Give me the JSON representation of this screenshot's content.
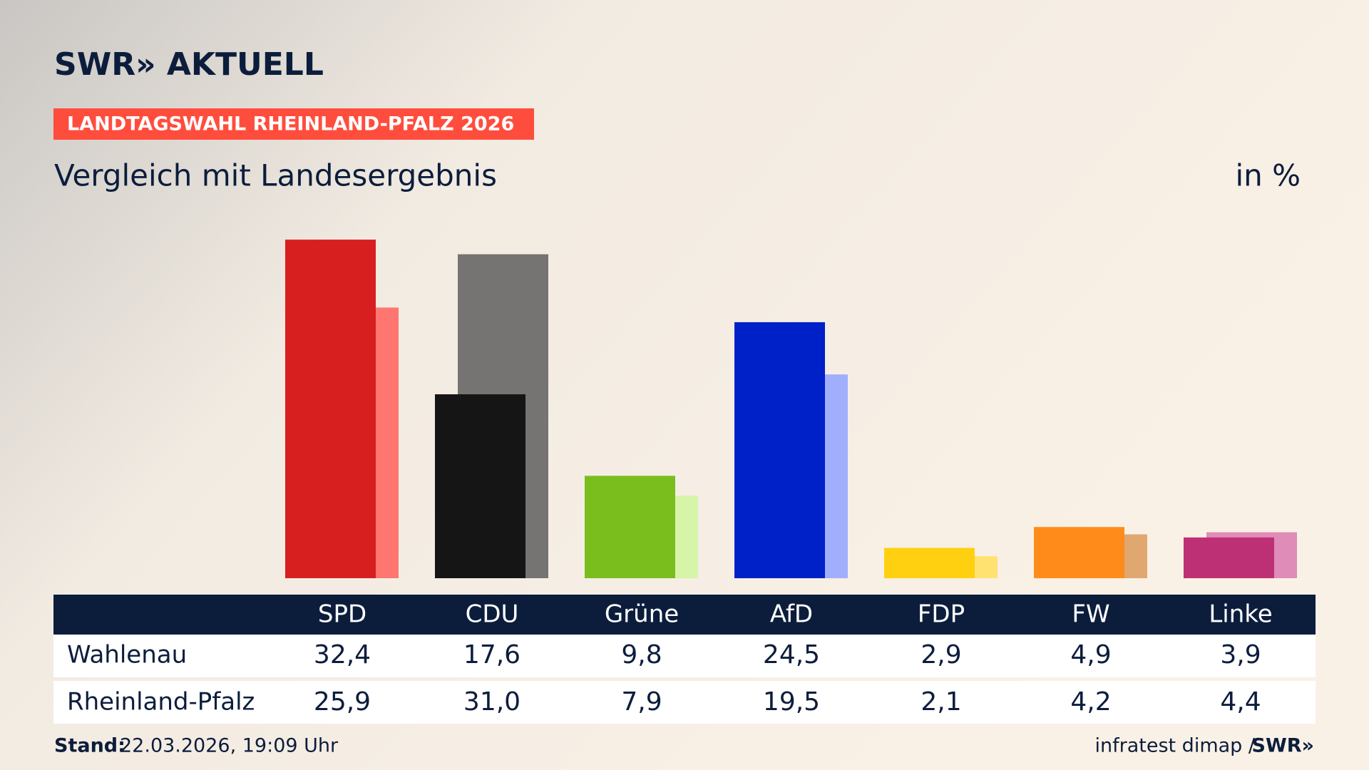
{
  "header": {
    "logo": "SWR» AKTUELL",
    "badge": "LANDTAGSWAHL RHEINLAND-PFALZ 2026"
  },
  "chart_data": {
    "type": "bar",
    "title": "Vergleich mit Landesergebnis",
    "unit": "in %",
    "categories": [
      "SPD",
      "CDU",
      "Grüne",
      "AfD",
      "FDP",
      "FW",
      "Linke"
    ],
    "series": [
      {
        "name": "Wahlenau",
        "colors": [
          "#d81f1f",
          "#151515",
          "#7abe1e",
          "#0020c8",
          "#ffd010",
          "#ff8c1a",
          "#be3075"
        ],
        "values": [
          32.4,
          17.6,
          9.8,
          24.5,
          2.9,
          4.9,
          3.9
        ],
        "value_labels": [
          "32,4",
          "17,6",
          "9,8",
          "24,5",
          "2,9",
          "4,9",
          "3,9"
        ]
      },
      {
        "name": "Rheinland-Pfalz",
        "colors": [
          "#ff7670",
          "#757472",
          "#d6f5a8",
          "#a0aefc",
          "#ffe270",
          "#e0a870",
          "#e08cb8"
        ],
        "values": [
          25.9,
          31.0,
          7.9,
          19.5,
          2.1,
          4.2,
          4.4
        ],
        "value_labels": [
          "25,9",
          "31,0",
          "7,9",
          "19,5",
          "2,1",
          "4,2",
          "4,4"
        ]
      }
    ],
    "ylim": [
      0,
      35
    ]
  },
  "footer": {
    "stand_label": "Stand:",
    "stand": "22.03.2026, 19:09 Uhr",
    "source": "infratest dimap /",
    "source_logo": "SWR»"
  }
}
